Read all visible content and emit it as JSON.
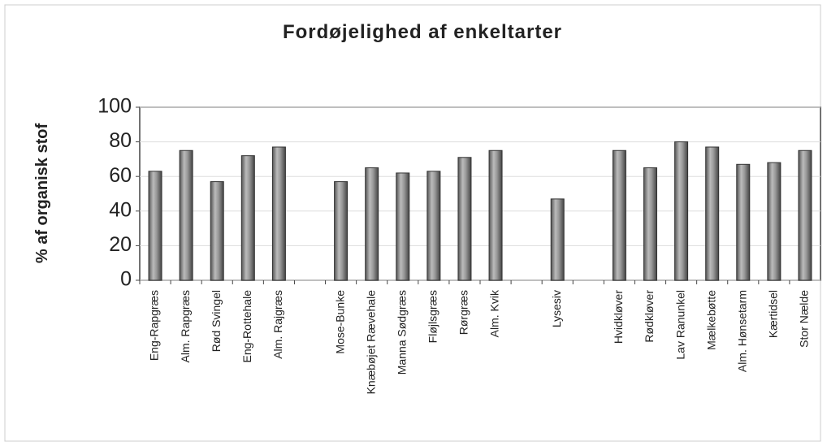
{
  "chart_data": {
    "type": "bar",
    "title": "Fordøjelighed af enkeltarter",
    "y_label": "% af organisk stof",
    "categories": [
      "Eng-Rapgræs",
      "Alm. Rapgræs",
      "Rød Svingel",
      "Eng-Rottehale",
      "Alm. Rajgræs",
      null,
      "Mose-Bunke",
      "Knæbøjet Rævehale",
      "Manna Sødgræs",
      "Fløjlsgræs",
      "Rørgræs",
      "Alm. Kvik",
      null,
      "Lysesiv",
      null,
      "Hvidkløver",
      "Rødkløver",
      "Lav Ranunkel",
      "Mælkebøtte",
      "Alm. Hønsetarm",
      "Kærtidsel",
      "Stor Nælde"
    ],
    "values": [
      63,
      75,
      57,
      72,
      77,
      null,
      57,
      65,
      62,
      63,
      71,
      75,
      null,
      47,
      null,
      75,
      65,
      80,
      77,
      67,
      68,
      75
    ],
    "color": "#9a9a9a",
    "ylim": [
      0,
      100
    ],
    "yticks": [
      0,
      20,
      40,
      60,
      80,
      100
    ],
    "grid": true
  }
}
